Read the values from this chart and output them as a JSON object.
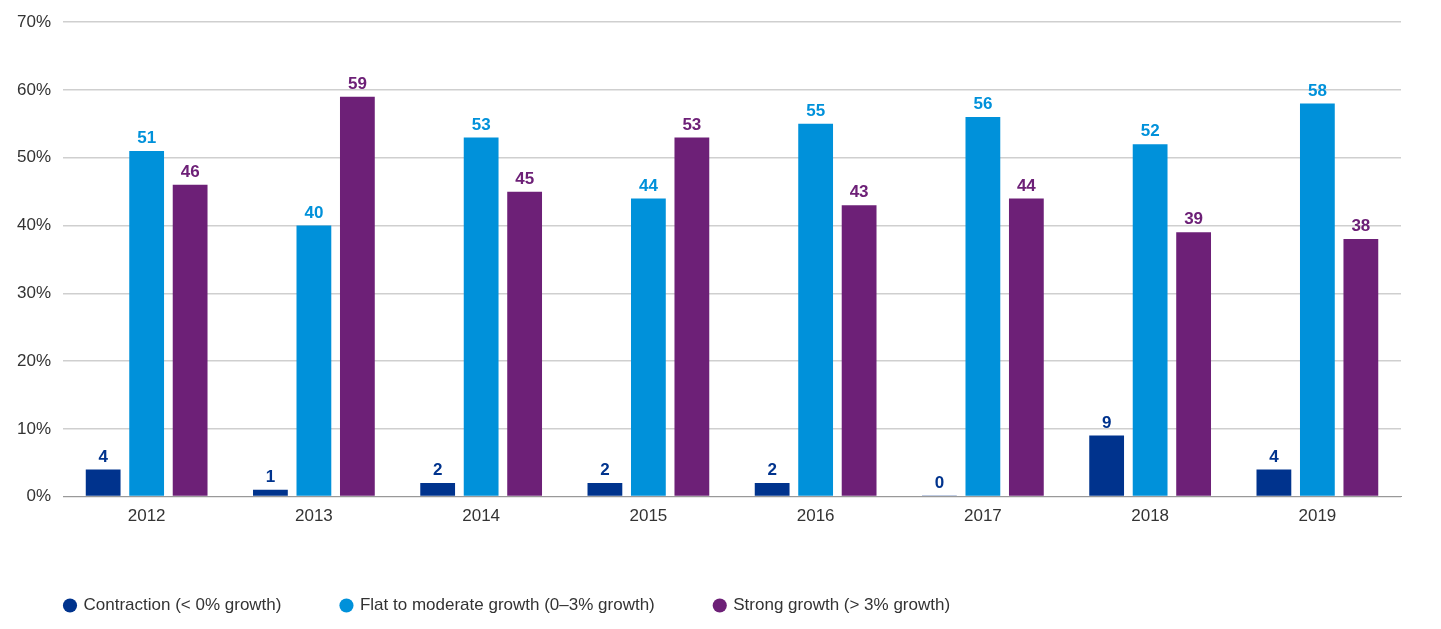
{
  "chart_data": {
    "type": "bar",
    "categories": [
      "2012",
      "2013",
      "2014",
      "2015",
      "2016",
      "2017",
      "2018",
      "2019"
    ],
    "series": [
      {
        "name": "Contraction (< 0% growth)",
        "color": "#00338d",
        "values": [
          4,
          1,
          2,
          2,
          2,
          0,
          9,
          4
        ]
      },
      {
        "name": "Flat to moderate growth (0–3% growth)",
        "color": "#0091da",
        "values": [
          51,
          40,
          53,
          44,
          55,
          56,
          52,
          58
        ]
      },
      {
        "name": "Strong growth (> 3% growth)",
        "color": "#6d2077",
        "values": [
          46,
          59,
          45,
          53,
          43,
          44,
          39,
          38
        ]
      }
    ],
    "ylim": [
      0,
      70
    ],
    "yticks": [
      {
        "value": 0,
        "label": "0%"
      },
      {
        "value": 10,
        "label": "10%"
      },
      {
        "value": 20,
        "label": "20%"
      },
      {
        "value": 30,
        "label": "30%"
      },
      {
        "value": 40,
        "label": "40%"
      },
      {
        "value": 50,
        "label": "50%"
      },
      {
        "value": 60,
        "label": "60%"
      },
      {
        "value": 70,
        "label": "70%"
      }
    ],
    "grid": "y",
    "legend": "bottom",
    "marker": "circle",
    "data_labels": true
  }
}
